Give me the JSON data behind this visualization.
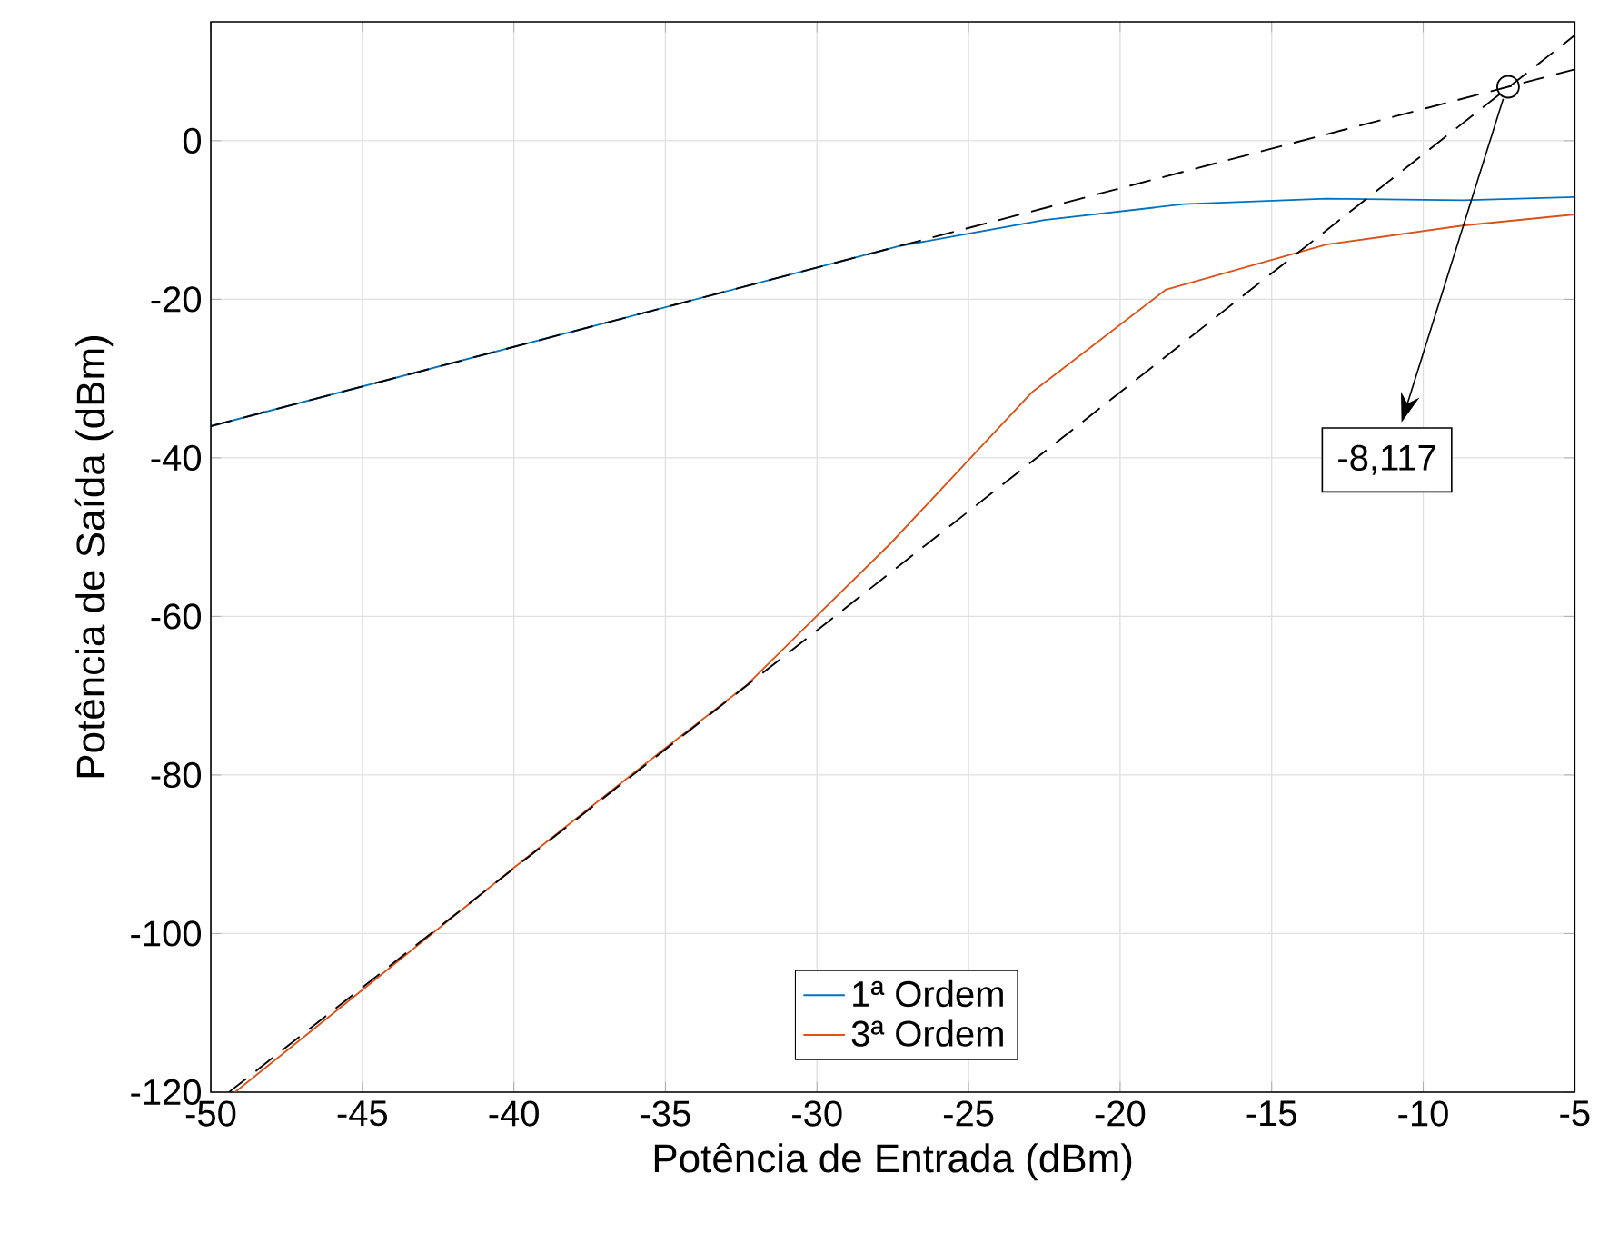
{
  "chart_data": {
    "type": "line",
    "xlabel": "Potência de Entrada (dBm)",
    "ylabel": "Potência de Saída (dBm)",
    "xlim": [
      -50,
      -5
    ],
    "ylim": [
      -120,
      15
    ],
    "xticks": [
      -50,
      -45,
      -40,
      -35,
      -30,
      -25,
      -20,
      -15,
      -10,
      -5
    ],
    "yticks": [
      -120,
      -100,
      -80,
      -60,
      -40,
      -20,
      0
    ],
    "grid": true,
    "legend": "bottom",
    "series": [
      {
        "name": "1ª Ordem",
        "color": "#0072bd",
        "x": [
          -50,
          -27.3,
          -22.5,
          -17.9,
          -13.2,
          -8.7,
          -5
        ],
        "values": [
          -36,
          -13.3,
          -10,
          -8,
          -7.3,
          -7.5,
          -7.1
        ]
      },
      {
        "name": "3ª Ordem",
        "color": "#d95319",
        "x": [
          -49.2,
          -45,
          -40,
          -35,
          -32.3,
          -30,
          -27.6,
          -22.9,
          -18.5,
          -13.2,
          -8.7,
          -5
        ],
        "values": [
          -120,
          -107.1,
          -91.7,
          -76.6,
          -68.6,
          -59.9,
          -50.9,
          -31.7,
          -18.8,
          -13.1,
          -10.7,
          -9.3
        ]
      },
      {
        "type": "line",
        "color": "#000000",
        "line_style": "dashed",
        "x": [
          -50,
          -5
        ],
        "values": [
          -36,
          9
        ]
      },
      {
        "type": "line",
        "color": "#000000",
        "line_style": "dashed",
        "x": [
          -49.4,
          -5
        ],
        "values": [
          -120,
          13.3
        ]
      },
      {
        "type": "scatter",
        "color": "#000000",
        "marker": "circle",
        "x": [
          -7.2
        ],
        "values": [
          6.8
        ]
      }
    ],
    "annotations": [
      {
        "text": "-8,117",
        "x": -7.2,
        "y": 6.8
      }
    ]
  }
}
